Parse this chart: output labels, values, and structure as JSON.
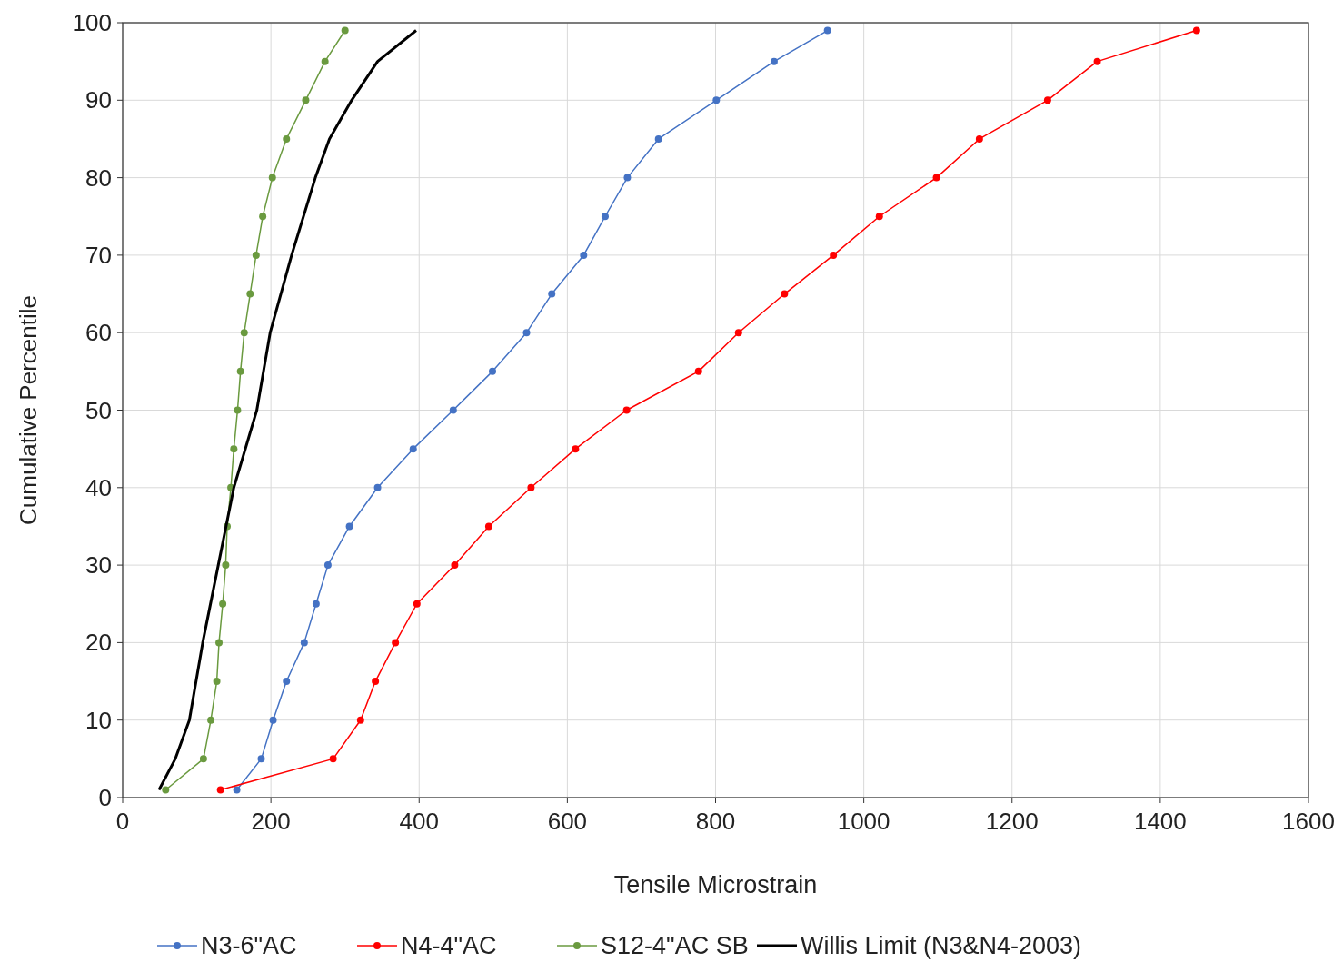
{
  "chart_data": {
    "type": "line",
    "xlabel": "Tensile Microstrain",
    "ylabel": "Cumulative Percentile",
    "xlim": [
      0,
      1600
    ],
    "xticks": [
      0,
      200,
      400,
      600,
      800,
      1000,
      1200,
      1400,
      1600
    ],
    "ylim": [
      0,
      100
    ],
    "yticks": [
      0,
      10,
      20,
      30,
      40,
      50,
      60,
      70,
      80,
      90,
      100
    ],
    "grid": true,
    "legend": "bottom",
    "series": [
      {
        "name": "N3-6\"AC",
        "color": "#4472c4",
        "marker": "circle",
        "x": [
          154,
          187,
          203,
          221,
          245,
          261,
          277,
          306,
          344,
          392,
          446,
          499,
          545,
          579,
          622,
          651,
          681,
          723,
          801,
          879,
          951
        ],
        "values": [
          1,
          5,
          10,
          15,
          20,
          25,
          30,
          35,
          40,
          45,
          50,
          55,
          60,
          65,
          70,
          75,
          80,
          85,
          90,
          95,
          99
        ]
      },
      {
        "name": "N4-4\"AC",
        "color": "#ff0000",
        "marker": "circle",
        "x": [
          132,
          284,
          321,
          341,
          368,
          397,
          448,
          494,
          551,
          611,
          680,
          777,
          831,
          893,
          959,
          1021,
          1098,
          1156,
          1248,
          1315,
          1449
        ],
        "values": [
          1,
          5,
          10,
          15,
          20,
          25,
          30,
          35,
          40,
          45,
          50,
          55,
          60,
          65,
          70,
          75,
          80,
          85,
          90,
          95,
          99
        ]
      },
      {
        "name": "S12-4\"AC SB",
        "color": "#6a9a3f",
        "marker": "circle",
        "x": [
          58,
          109,
          119,
          127,
          130,
          135,
          139,
          141,
          146,
          150,
          155,
          159,
          164,
          172,
          180,
          189,
          202,
          221,
          247,
          273,
          300
        ],
        "values": [
          1,
          5,
          10,
          15,
          20,
          25,
          30,
          35,
          40,
          45,
          50,
          55,
          60,
          65,
          70,
          75,
          80,
          85,
          90,
          95,
          99
        ]
      },
      {
        "name": "Willis Limit (N3&N4-2003)",
        "color": "#000000",
        "marker": "none",
        "x": [
          49,
          71,
          90,
          108,
          129,
          150,
          181,
          199,
          228,
          260,
          279,
          309,
          344,
          396
        ],
        "values": [
          1,
          5,
          10,
          20,
          30,
          40,
          50,
          60,
          70,
          80,
          85,
          90,
          95,
          99
        ]
      }
    ]
  }
}
